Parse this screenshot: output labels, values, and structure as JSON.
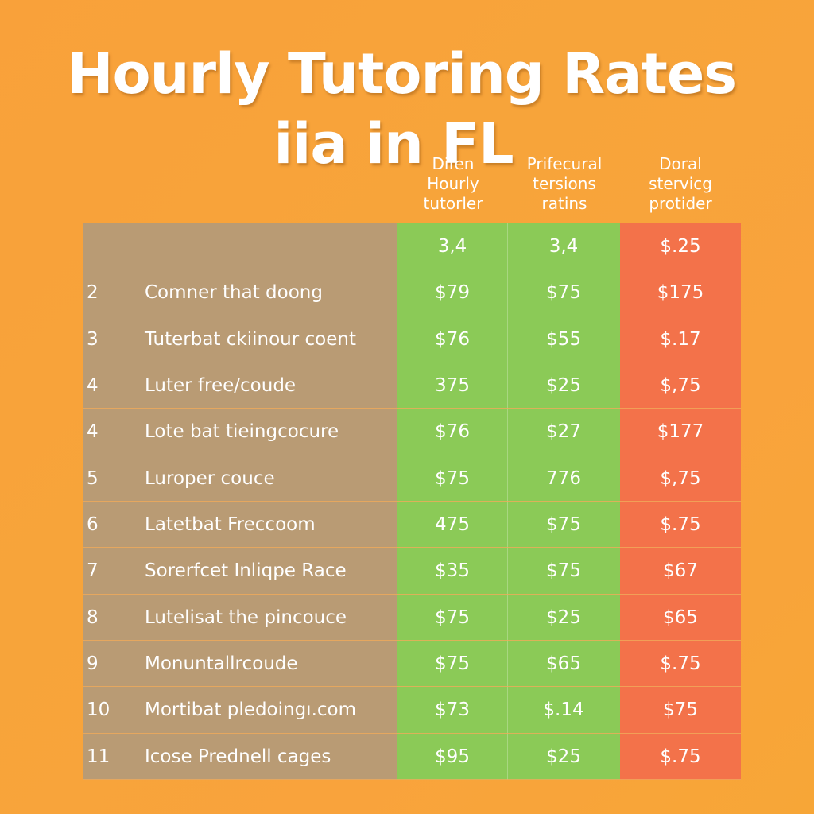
{
  "title": {
    "line1": "Hourly Tutoring Rates",
    "line2": "iia in FL"
  },
  "colors": {
    "background": "#f9a13a",
    "label_column": "#b99b74",
    "green_columns": "#8bca57",
    "red_column": "#f3724a",
    "text": "#ffffff"
  },
  "chart_data": {
    "type": "table",
    "columns": [
      {
        "lines": [
          "Difen",
          "Hourly",
          "tutorler"
        ]
      },
      {
        "lines": [
          "Prifecural",
          "tersions",
          "ratins"
        ]
      },
      {
        "lines": [
          "Doral",
          "stervicg",
          "protider"
        ]
      }
    ],
    "rows": [
      {
        "num": "",
        "label": "",
        "values": [
          "3,4",
          "3,4",
          "$.25"
        ]
      },
      {
        "num": "2",
        "label": "Comner that doong",
        "values": [
          "$79",
          "$75",
          "$175"
        ]
      },
      {
        "num": "3",
        "label": "Tuterbat ckiinour coent",
        "values": [
          "$76",
          "$55",
          "$.17"
        ]
      },
      {
        "num": "4",
        "label": "Luter free/coude",
        "values": [
          "375",
          "$25",
          "$,75"
        ]
      },
      {
        "num": "4",
        "label": "Lote bat tieingcocure",
        "values": [
          "$76",
          "$27",
          "$177"
        ]
      },
      {
        "num": "5",
        "label": "Luroper couce",
        "values": [
          "$75",
          "776",
          "$,75"
        ]
      },
      {
        "num": "6",
        "label": "Latetbat Freccoom",
        "values": [
          "475",
          "$75",
          "$.75"
        ]
      },
      {
        "num": "7",
        "label": "Sorerfcet Inliqpe Race",
        "values": [
          "$35",
          "$75",
          "$67"
        ]
      },
      {
        "num": "8",
        "label": "Lutelisat the pincouce",
        "values": [
          "$75",
          "$25",
          "$65"
        ]
      },
      {
        "num": "9",
        "label": "Monuntallrcoude",
        "values": [
          "$75",
          "$65",
          "$.75"
        ]
      },
      {
        "num": "10",
        "label": "Mortibat pledoingı.com",
        "values": [
          "$73",
          "$.14",
          "$75"
        ]
      },
      {
        "num": "11",
        "label": "Icose Prednell cages",
        "values": [
          "$95",
          "$25",
          "$.75"
        ]
      }
    ]
  }
}
